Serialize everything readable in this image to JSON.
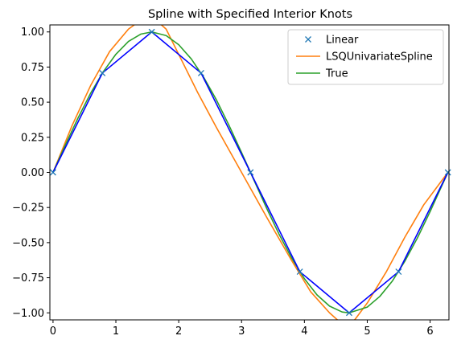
{
  "chart_data": {
    "type": "line",
    "title": "Spline with Specified Interior Knots",
    "xlabel": "",
    "ylabel": "",
    "xlim": [
      -0.05,
      6.3
    ],
    "ylim": [
      -1.05,
      1.05
    ],
    "xticks": [
      0,
      1,
      2,
      3,
      4,
      5,
      6
    ],
    "xtick_labels": [
      "0",
      "1",
      "2",
      "3",
      "4",
      "5",
      "6"
    ],
    "yticks": [
      1.0,
      0.75,
      0.5,
      0.25,
      0.0,
      -0.25,
      -0.5,
      -0.75,
      -1.0
    ],
    "ytick_labels": [
      "1.00",
      "0.75",
      "0.50",
      "0.25",
      "0.00",
      "−0.25",
      "−0.50",
      "−0.75",
      "−1.00"
    ],
    "legend_position": "top-right",
    "grid": false,
    "series": [
      {
        "name": "Linear",
        "kind": "markers",
        "marker": "x",
        "color": "#1f77b4",
        "x": [
          0,
          0.785,
          1.571,
          2.356,
          3.142,
          3.927,
          4.712,
          5.498,
          6.283
        ],
        "y": [
          0,
          0.707,
          1.0,
          0.707,
          0.0,
          -0.707,
          -1.0,
          -0.707,
          0.0
        ]
      },
      {
        "name": "LSQUnivariateSpline",
        "kind": "line",
        "color": "#ff7f0e",
        "x": [
          0,
          0.3,
          0.6,
          0.9,
          1.2,
          1.4,
          1.6,
          1.8,
          2.0,
          2.3,
          2.6,
          3.0,
          3.4,
          3.8,
          4.1,
          4.4,
          4.6,
          4.8,
          5.0,
          5.3,
          5.6,
          5.9,
          6.283
        ],
        "y": [
          0,
          0.33,
          0.62,
          0.86,
          1.02,
          1.085,
          1.1,
          1.02,
          0.84,
          0.57,
          0.32,
          0.0,
          -0.32,
          -0.63,
          -0.85,
          -1.0,
          -1.08,
          -1.05,
          -0.93,
          -0.71,
          -0.46,
          -0.23,
          0.0
        ]
      },
      {
        "name": "True",
        "kind": "line",
        "color": "#2ca02c",
        "x": [
          0,
          0.2,
          0.4,
          0.6,
          0.8,
          1.0,
          1.2,
          1.4,
          1.571,
          1.8,
          2.0,
          2.2,
          2.4,
          2.6,
          2.8,
          3.0,
          3.142,
          3.4,
          3.6,
          3.8,
          4.0,
          4.2,
          4.4,
          4.6,
          4.712,
          5.0,
          5.2,
          5.4,
          5.6,
          5.8,
          6.0,
          6.283
        ],
        "y": [
          0,
          0.199,
          0.389,
          0.565,
          0.717,
          0.841,
          0.932,
          0.985,
          1.0,
          0.974,
          0.909,
          0.808,
          0.675,
          0.516,
          0.335,
          0.141,
          0.0,
          -0.256,
          -0.443,
          -0.612,
          -0.757,
          -0.872,
          -0.952,
          -0.994,
          -1.0,
          -0.959,
          -0.883,
          -0.773,
          -0.631,
          -0.465,
          -0.279,
          0.0
        ]
      },
      {
        "name": "",
        "kind": "line",
        "color": "#0000ff",
        "x": [
          0,
          0.785,
          1.571,
          2.356,
          3.142,
          3.927,
          4.712,
          5.498,
          6.283
        ],
        "y": [
          0,
          0.707,
          1.0,
          0.707,
          0.0,
          -0.707,
          -1.0,
          -0.707,
          0.0
        ]
      }
    ]
  }
}
